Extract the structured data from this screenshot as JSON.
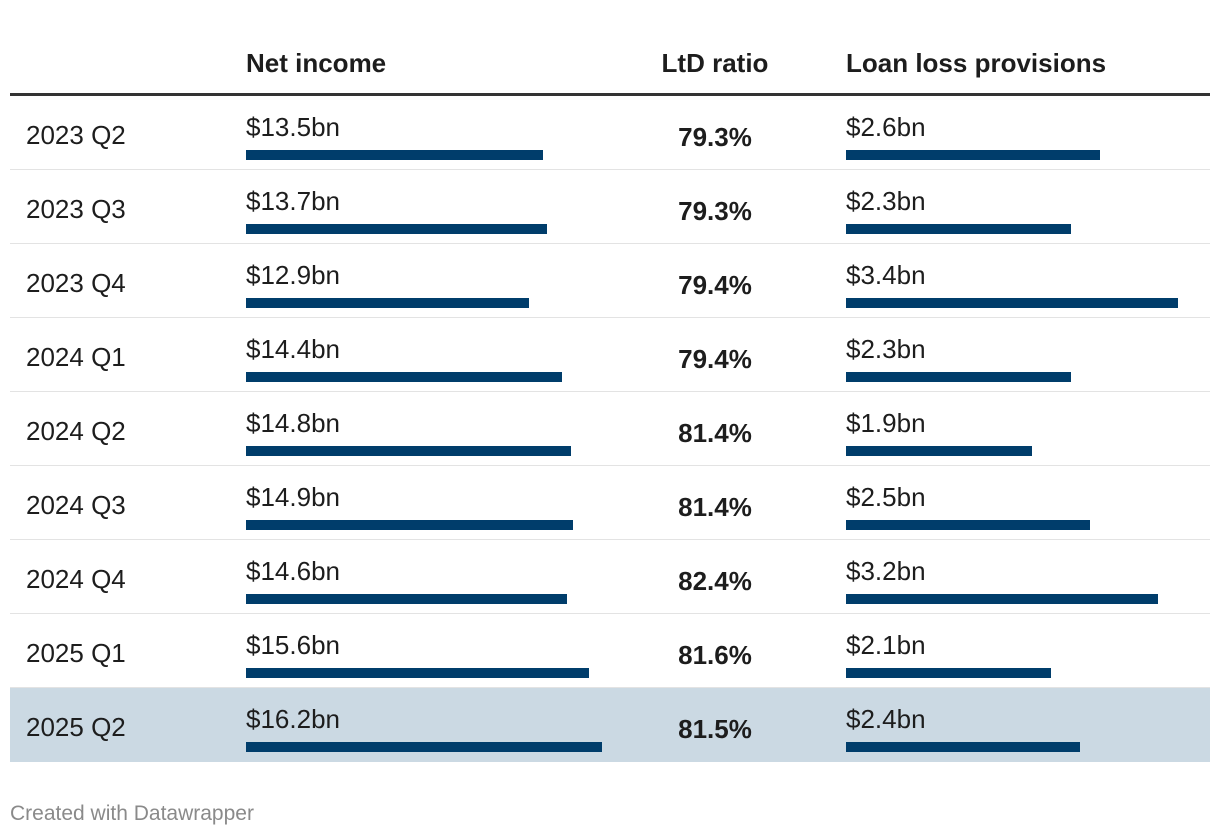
{
  "chart_data": {
    "type": "table",
    "columns": [
      "",
      "Net income",
      "LtD ratio",
      "Loan loss provisions"
    ],
    "rows": [
      {
        "period": "2023 Q2",
        "net_income": 13.5,
        "net_income_label": "$13.5bn",
        "ltd_ratio": "79.3%",
        "llp": 2.6,
        "llp_label": "$2.6bn"
      },
      {
        "period": "2023 Q3",
        "net_income": 13.7,
        "net_income_label": "$13.7bn",
        "ltd_ratio": "79.3%",
        "llp": 2.3,
        "llp_label": "$2.3bn"
      },
      {
        "period": "2023 Q4",
        "net_income": 12.9,
        "net_income_label": "$12.9bn",
        "ltd_ratio": "79.4%",
        "llp": 3.4,
        "llp_label": "$3.4bn"
      },
      {
        "period": "2024 Q1",
        "net_income": 14.4,
        "net_income_label": "$14.4bn",
        "ltd_ratio": "79.4%",
        "llp": 2.3,
        "llp_label": "$2.3bn"
      },
      {
        "period": "2024 Q2",
        "net_income": 14.8,
        "net_income_label": "$14.8bn",
        "ltd_ratio": "81.4%",
        "llp": 1.9,
        "llp_label": "$1.9bn"
      },
      {
        "period": "2024 Q3",
        "net_income": 14.9,
        "net_income_label": "$14.9bn",
        "ltd_ratio": "81.4%",
        "llp": 2.5,
        "llp_label": "$2.5bn"
      },
      {
        "period": "2024 Q4",
        "net_income": 14.6,
        "net_income_label": "$14.6bn",
        "ltd_ratio": "82.4%",
        "llp": 3.2,
        "llp_label": "$3.2bn"
      },
      {
        "period": "2025 Q1",
        "net_income": 15.6,
        "net_income_label": "$15.6bn",
        "ltd_ratio": "81.6%",
        "llp": 2.1,
        "llp_label": "$2.1bn"
      },
      {
        "period": "2025 Q2",
        "net_income": 16.2,
        "net_income_label": "$16.2bn",
        "ltd_ratio": "81.5%",
        "llp": 2.4,
        "llp_label": "$2.4bn",
        "highlight": true
      }
    ],
    "bar_color": "#003d6b",
    "highlight_color": "#cbd9e3"
  },
  "footer": {
    "credit": "Created with Datawrapper"
  }
}
